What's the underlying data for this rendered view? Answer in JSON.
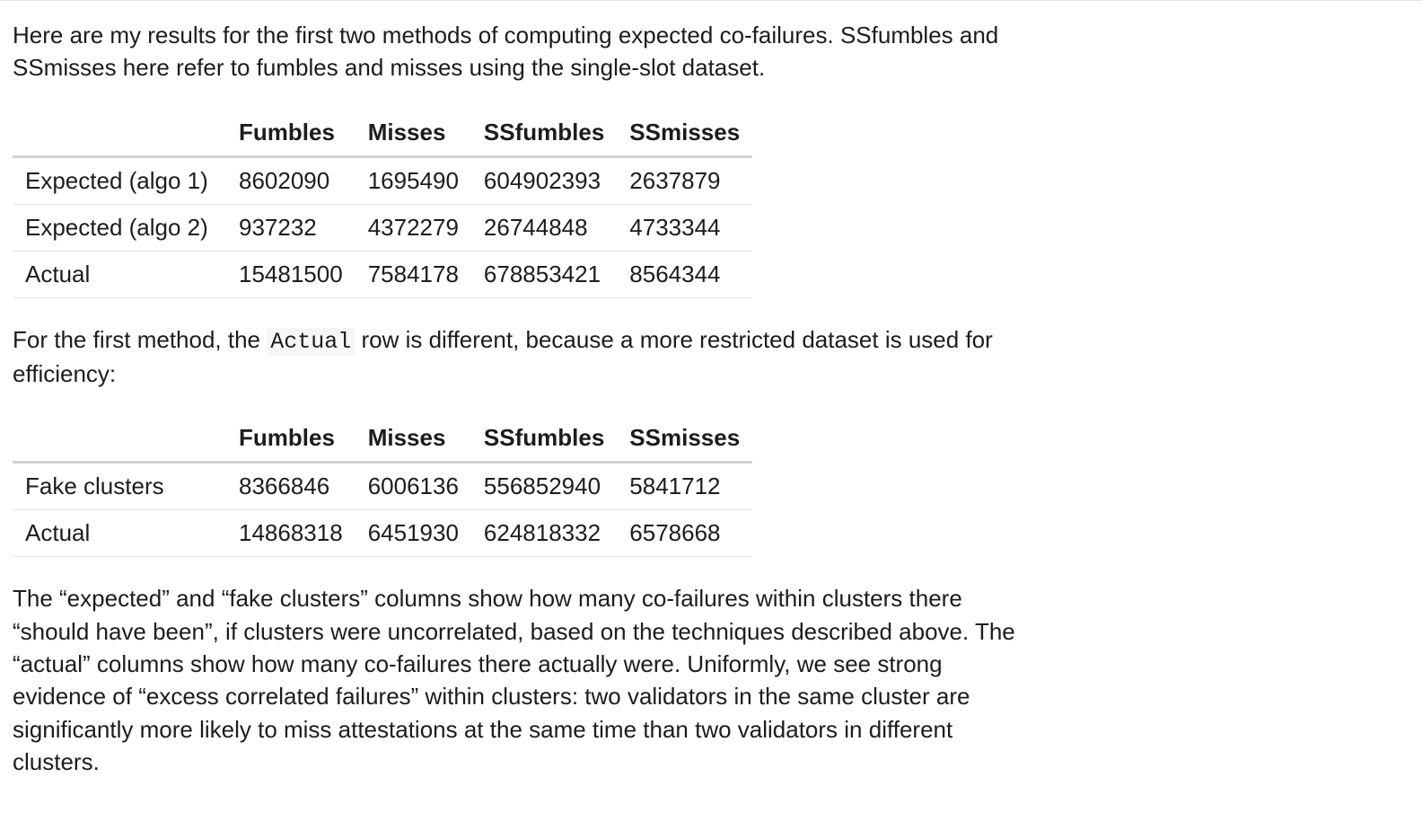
{
  "intro_text": "Here are my results for the first two methods of computing expected co-failures. SSfumbles and SSmisses here refer to fumbles and misses using the single-slot dataset.",
  "table1": {
    "columns": [
      "",
      "Fumbles",
      "Misses",
      "SSfumbles",
      "SSmisses"
    ],
    "rows": [
      [
        "Expected (algo 1)",
        "8602090",
        "1695490",
        "604902393",
        "2637879"
      ],
      [
        "Expected (algo 2)",
        "937232",
        "4372279",
        "26744848",
        "4733344"
      ],
      [
        "Actual",
        "15481500",
        "7584178",
        "678853421",
        "8564344"
      ]
    ]
  },
  "mid_text_pre": "For the first method, the ",
  "mid_text_code": "Actual",
  "mid_text_post": " row is different, because a more restricted dataset is used for efficiency:",
  "table2": {
    "columns": [
      "",
      "Fumbles",
      "Misses",
      "SSfumbles",
      "SSmisses"
    ],
    "rows": [
      [
        "Fake clusters",
        "8366846",
        "6006136",
        "556852940",
        "5841712"
      ],
      [
        "Actual",
        "14868318",
        "6451930",
        "624818332",
        "6578668"
      ]
    ]
  },
  "closing_text": "The “expected” and “fake clusters” columns show how many co-failures within clusters there “should have been”, if clusters were uncorrelated, based on the techniques described above. The “actual” columns show how many co-failures there actually were. Uniformly, we see strong evidence of “excess correlated failures” within clusters: two validators in the same cluster are significantly more likely to miss attestations at the same time than two validators in different clusters."
}
